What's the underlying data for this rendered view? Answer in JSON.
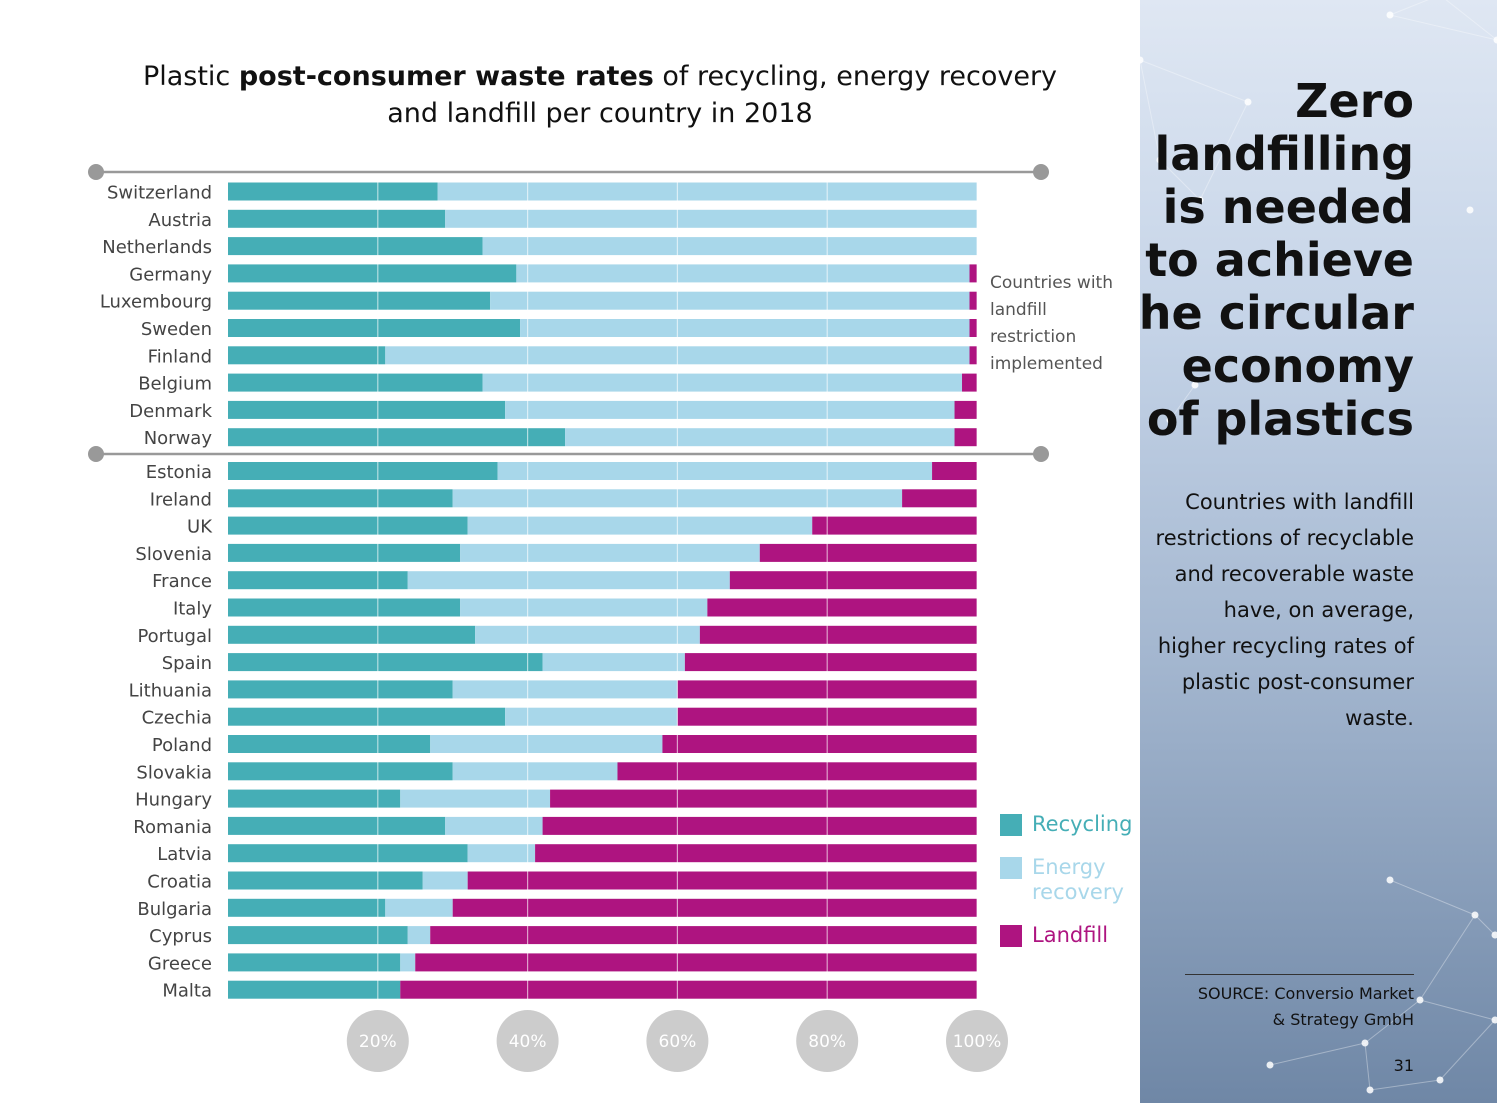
{
  "title": {
    "part1": "Plastic ",
    "bold": "post-consumer waste rates",
    "part2": " of recycling, energy recovery",
    "line2": "and landfill per country in 2018"
  },
  "note": "Countries with landfill restriction implemented",
  "colors": {
    "recycling": "#45aeb6",
    "energy": "#a8d7ea",
    "landfill": "#ae1480",
    "divider": "#999999",
    "tick_circle": "#cccccc"
  },
  "legend": {
    "recycling": "Recycling",
    "energy": "Energy recovery",
    "landfill": "Landfill"
  },
  "chart_data": {
    "type": "bar",
    "orientation": "horizontal",
    "stacked": true,
    "categories": [
      "Switzerland",
      "Austria",
      "Netherlands",
      "Germany",
      "Luxembourg",
      "Sweden",
      "Finland",
      "Belgium",
      "Denmark",
      "Norway",
      "Estonia",
      "Ireland",
      "UK",
      "Slovenia",
      "France",
      "Italy",
      "Portugal",
      "Spain",
      "Lithuania",
      "Czechia",
      "Poland",
      "Slovakia",
      "Hungary",
      "Romania",
      "Latvia",
      "Croatia",
      "Bulgaria",
      "Cyprus",
      "Greece",
      "Malta"
    ],
    "series": [
      {
        "name": "Recycling",
        "values": [
          28,
          29,
          34,
          38.5,
          35,
          39,
          21,
          34,
          37,
          45,
          36,
          30,
          32,
          31,
          24,
          31,
          33,
          42,
          30,
          37,
          27,
          30,
          23,
          29,
          32,
          26,
          21,
          24,
          23,
          23
        ]
      },
      {
        "name": "Energy recovery",
        "values": [
          72,
          71,
          66,
          60.5,
          64,
          60,
          78,
          64,
          60,
          52,
          58,
          60,
          46,
          40,
          43,
          33,
          30,
          19,
          30,
          23,
          31,
          22,
          20,
          13,
          9,
          6,
          9,
          3,
          2,
          0
        ]
      },
      {
        "name": "Landfill",
        "values": [
          0,
          0,
          0,
          1,
          1,
          1,
          1,
          2,
          3,
          3,
          6,
          10,
          22,
          29,
          33,
          36,
          37,
          39,
          40,
          40,
          42,
          48,
          57,
          58,
          59,
          68,
          70,
          73,
          75,
          77
        ]
      }
    ],
    "x_ticks": [
      "20%",
      "40%",
      "60%",
      "80%",
      "100%"
    ],
    "xlim": [
      0,
      100
    ],
    "restricted_group": [
      "Switzerland",
      "Austria",
      "Netherlands",
      "Germany",
      "Luxembourg",
      "Sweden",
      "Finland",
      "Belgium",
      "Denmark",
      "Norway"
    ],
    "legend_position": "right"
  },
  "sidebar": {
    "headline": [
      "Zero",
      "landfilling",
      "is needed",
      "to achieve",
      "the circular",
      "economy",
      "of plastics"
    ],
    "body": [
      "Countries with landfill",
      "restrictions of recyclable",
      "and recoverable waste",
      "have, on average,",
      "higher recycling rates of",
      "plastic post-consumer",
      "waste."
    ],
    "source": [
      "SOURCE: Conversio Market",
      "& Strategy GmbH"
    ],
    "page_number": "31"
  }
}
